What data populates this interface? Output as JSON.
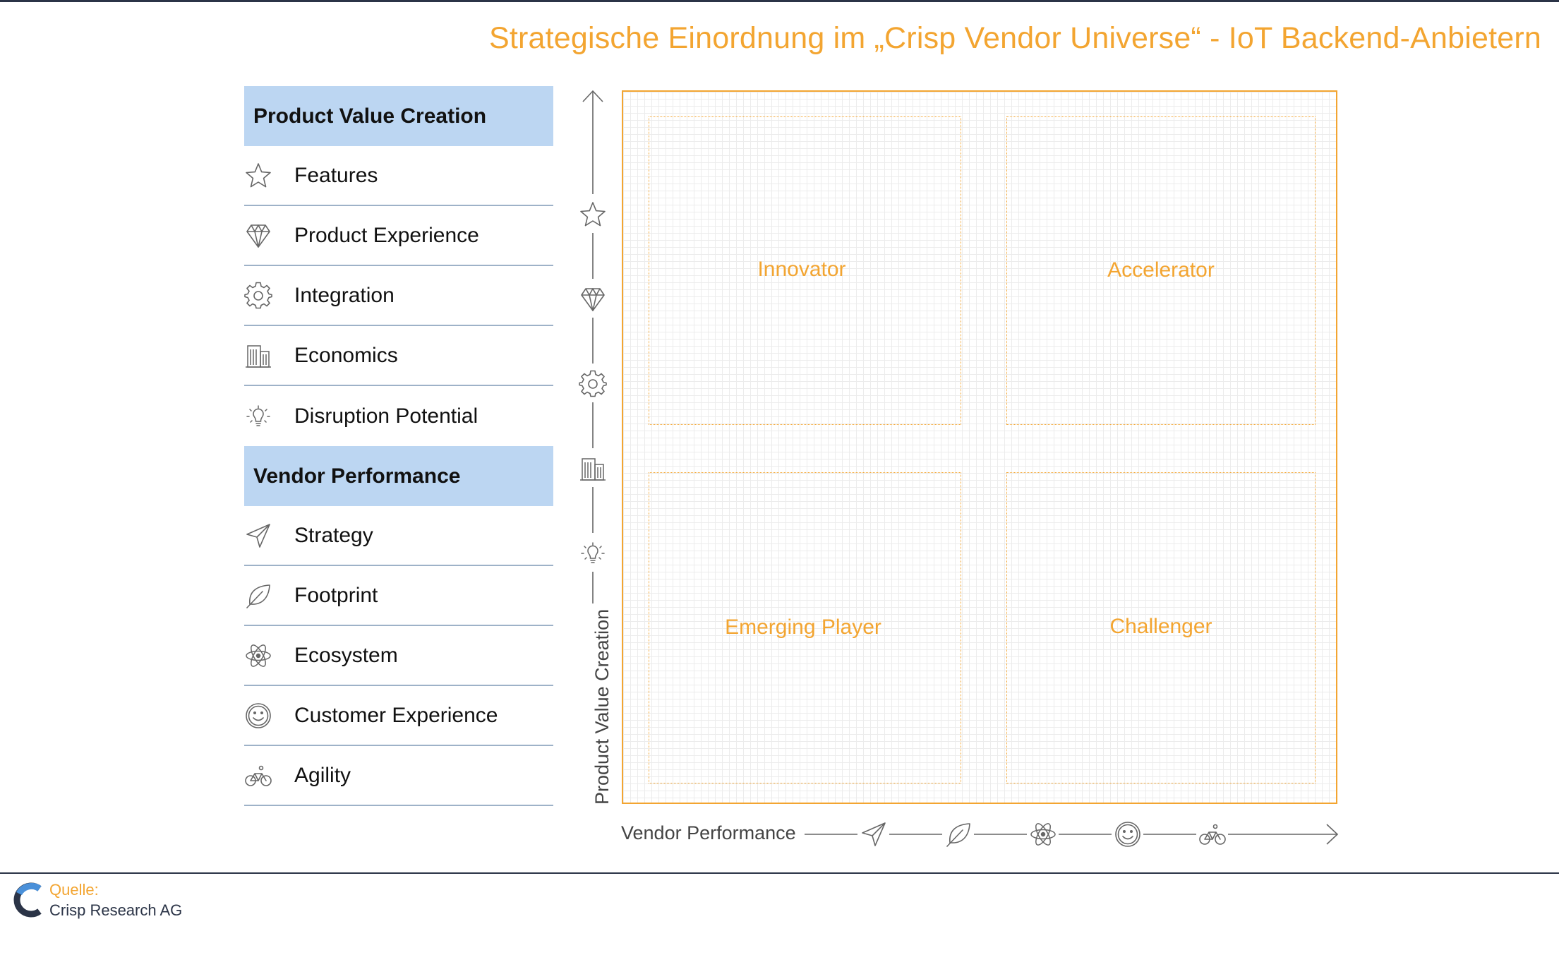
{
  "title": "Strategische Einordnung im „Crisp Vendor Universe“ - IoT Backend-Anbietern",
  "legend": {
    "product_value_creation": {
      "heading": "Product Value Creation",
      "items": [
        {
          "label": "Features",
          "icon": "star-icon"
        },
        {
          "label": "Product Experience",
          "icon": "diamond-icon"
        },
        {
          "label": "Integration",
          "icon": "gear-icon"
        },
        {
          "label": "Economics",
          "icon": "building-icon"
        },
        {
          "label": "Disruption Potential",
          "icon": "lightbulb-icon"
        }
      ]
    },
    "vendor_performance": {
      "heading": "Vendor Performance",
      "items": [
        {
          "label": "Strategy",
          "icon": "paper-plane-icon"
        },
        {
          "label": "Footprint",
          "icon": "leaf-icon"
        },
        {
          "label": "Ecosystem",
          "icon": "atom-icon"
        },
        {
          "label": "Customer Experience",
          "icon": "smiley-icon"
        },
        {
          "label": "Agility",
          "icon": "bicycle-icon"
        }
      ]
    }
  },
  "axes": {
    "y_label": "Product Value Creation",
    "x_label": "Vendor Performance"
  },
  "quadrants": {
    "top_left": "Innovator",
    "top_right": "Accelerator",
    "bottom_left": "Emerging Player",
    "bottom_right": "Challenger"
  },
  "source": {
    "label": "Quelle:",
    "name": "Crisp Research AG"
  },
  "colors": {
    "accent": "#f3a531",
    "section_bg": "#bcd6f2",
    "navy": "#2b3447"
  }
}
